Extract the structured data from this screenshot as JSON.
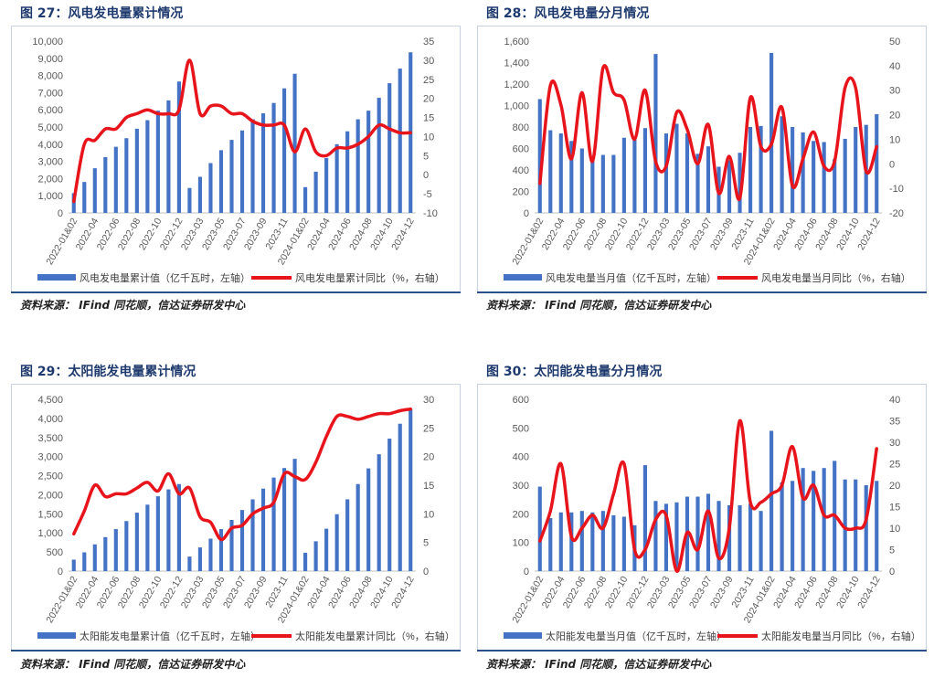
{
  "colors": {
    "bar": "#4472c4",
    "line": "#e8141b",
    "axis": "#595959",
    "title": "#1f3a6e"
  },
  "panels": [
    {
      "title": "图 27：风电发电量累计情况",
      "source": "资料来源： IFind 同花顺，信达证券研发中心",
      "chart_data": {
        "type": "bar+line",
        "categories": [
          "2022-01&02",
          "2022-03",
          "2022-04",
          "2022-05",
          "2022-06",
          "2022-07",
          "2022-08",
          "2022-09",
          "2022-10",
          "2022-11",
          "2022-12",
          "2023-01&02",
          "2023-03",
          "2023-04",
          "2023-05",
          "2023-06",
          "2023-07",
          "2023-08",
          "2023-09",
          "2023-10",
          "2023-11",
          "2023-12",
          "2024-01&02",
          "2024-03",
          "2024-04",
          "2024-05",
          "2024-06",
          "2024-07",
          "2024-08",
          "2024-09",
          "2024-10",
          "2024-11",
          "2024-12"
        ],
        "tick_labels": [
          "2022-01&02",
          "2022-04",
          "2022-06",
          "2022-08",
          "2022-10",
          "2022-12",
          "2023-03",
          "2023-05",
          "2023-07",
          "2023-09",
          "2023-11",
          "2024-01&02",
          "2024-04",
          "2024-06",
          "2024-08",
          "2024-10",
          "2024-12"
        ],
        "left_axis": {
          "min": 0,
          "max": 10000,
          "step": 1000,
          "labels": [
            "0",
            "1,000",
            "2,000",
            "3,000",
            "4,000",
            "5,000",
            "6,000",
            "7,000",
            "8,000",
            "9,000",
            "10,000"
          ]
        },
        "right_axis": {
          "min": -10,
          "max": 35,
          "step": 5,
          "labels": [
            "-10",
            "-5",
            "0",
            "5",
            "10",
            "15",
            "20",
            "25",
            "30",
            "35"
          ]
        },
        "series": [
          {
            "name": "风电发电量累计值（亿千瓦时，左轴）",
            "axis": "left",
            "kind": "bar",
            "values": [
              1150,
              1800,
              2600,
              3250,
              3850,
              4350,
              4900,
              5400,
              5950,
              6550,
              7650,
              1450,
              2100,
              2900,
              3650,
              4250,
              4800,
              5450,
              5800,
              6400,
              7250,
              8100,
              1500,
              2400,
              3200,
              4000,
              4750,
              5450,
              5950,
              6700,
              7550,
              8400,
              9350
            ]
          },
          {
            "name": "风电发电量累计同比（%，右轴）",
            "axis": "right",
            "kind": "line",
            "values": [
              -7,
              8,
              9,
              12,
              12,
              15,
              16,
              17,
              16,
              16,
              17,
              30,
              16,
              18,
              18,
              16,
              16,
              14,
              13,
              13,
              13,
              6,
              12,
              6,
              5,
              7,
              7,
              8,
              10,
              13,
              12,
              11,
              11
            ]
          }
        ]
      }
    },
    {
      "title": "图 28：风电发电量分月情况",
      "source": "资料来源： IFind 同花顺，信达证券研发中心",
      "chart_data": {
        "type": "bar+line",
        "categories": [
          "2022-01&02",
          "2022-03",
          "2022-04",
          "2022-05",
          "2022-06",
          "2022-07",
          "2022-08",
          "2022-09",
          "2022-10",
          "2022-11",
          "2022-12",
          "2023-01&02",
          "2023-03",
          "2023-04",
          "2023-05",
          "2023-06",
          "2023-07",
          "2023-08",
          "2023-09",
          "2023-10",
          "2023-11",
          "2023-12",
          "2024-01&02",
          "2024-03",
          "2024-04",
          "2024-05",
          "2024-06",
          "2024-07",
          "2024-08",
          "2024-09",
          "2024-10",
          "2024-11",
          "2024-12"
        ],
        "tick_labels": [
          "2022-01&02",
          "2022-04",
          "2022-06",
          "2022-08",
          "2022-10",
          "2022-12",
          "2023-03",
          "2023-05",
          "2023-07",
          "2023-09",
          "2023-11",
          "2024-01&02",
          "2024-04",
          "2024-06",
          "2024-08",
          "2024-10",
          "2024-12"
        ],
        "left_axis": {
          "min": 0,
          "max": 1600,
          "step": 200,
          "labels": [
            "0",
            "200",
            "400",
            "600",
            "800",
            "1,000",
            "1,200",
            "1,400",
            "1,600"
          ]
        },
        "right_axis": {
          "min": -20,
          "max": 50,
          "step": 10,
          "labels": [
            "-20",
            "-10",
            "0",
            "10",
            "20",
            "30",
            "40",
            "50"
          ]
        },
        "series": [
          {
            "name": "风电发电量当月值（亿千瓦时，左轴）",
            "axis": "left",
            "kind": "bar",
            "values": [
              1060,
              770,
              740,
              670,
              600,
              520,
              540,
              540,
              700,
              700,
              790,
              1480,
              740,
              830,
              740,
              550,
              620,
              430,
              490,
              560,
              800,
              810,
              1490,
              900,
              800,
              750,
              670,
              660,
              500,
              690,
              800,
              820,
              920
            ]
          },
          {
            "name": "风电发电量当月同比（%，右轴）",
            "axis": "right",
            "kind": "line",
            "values": [
              -8,
              32,
              24,
              2,
              29,
              1,
              39,
              29,
              26,
              10,
              30,
              1,
              -1,
              21,
              14,
              0,
              16,
              -12,
              3,
              -14,
              27,
              7,
              8,
              23,
              -9,
              2,
              13,
              -1,
              1,
              31,
              31,
              -3,
              7
            ]
          }
        ]
      }
    },
    {
      "title": "图 29：太阳能发电量累计情况",
      "source": "资料来源： IFind 同花顺，信达证券研发中心",
      "chart_data": {
        "type": "bar+line",
        "categories": [
          "2022-01&02",
          "2022-03",
          "2022-04",
          "2022-05",
          "2022-06",
          "2022-07",
          "2022-08",
          "2022-09",
          "2022-10",
          "2022-11",
          "2022-12",
          "2023-01&02",
          "2023-03",
          "2023-04",
          "2023-05",
          "2023-06",
          "2023-07",
          "2023-08",
          "2023-09",
          "2023-10",
          "2023-11",
          "2023-12",
          "2024-01&02",
          "2024-03",
          "2024-04",
          "2024-05",
          "2024-06",
          "2024-07",
          "2024-08",
          "2024-09",
          "2024-10",
          "2024-11",
          "2024-12"
        ],
        "tick_labels": [
          "2022-01&02",
          "2022-04",
          "2022-06",
          "2022-08",
          "2022-10",
          "2022-12",
          "2023-03",
          "2023-05",
          "2023-07",
          "2023-09",
          "2023-11",
          "2024-01&02",
          "2024-04",
          "2024-06",
          "2024-08",
          "2024-10",
          "2024-12"
        ],
        "left_axis": {
          "min": 0,
          "max": 4500,
          "step": 500,
          "labels": [
            "0",
            "500",
            "1,000",
            "1,500",
            "2,000",
            "2,500",
            "3,000",
            "3,500",
            "4,000",
            "4,500"
          ]
        },
        "right_axis": {
          "min": 0,
          "max": 30,
          "step": 5,
          "labels": [
            "0",
            "5",
            "10",
            "15",
            "20",
            "25",
            "30"
          ]
        },
        "series": [
          {
            "name": "太阳能发电量累计值（亿千瓦时，左轴）",
            "axis": "left",
            "kind": "bar",
            "values": [
              300,
              490,
              700,
              890,
              1100,
              1310,
              1530,
              1740,
              1960,
              2140,
              2280,
              380,
              620,
              850,
              1100,
              1340,
              1600,
              1880,
              2160,
              2450,
              2700,
              2940,
              480,
              780,
              1110,
              1490,
              1880,
              2280,
              2690,
              3060,
              3470,
              3860,
              4250
            ]
          },
          {
            "name": "太阳能发电量累计同比（%，右轴）",
            "axis": "right",
            "kind": "line",
            "values": [
              6.5,
              10.5,
              15,
              13,
              13.5,
              13.5,
              14.5,
              15.5,
              14,
              17,
              13.5,
              14.5,
              9.5,
              8.5,
              5.5,
              7.5,
              8,
              10,
              11,
              12,
              17,
              16.5,
              16,
              19,
              23.5,
              27,
              27,
              26.5,
              27,
              27.5,
              27.5,
              28,
              28.3
            ]
          }
        ]
      }
    },
    {
      "title": "图 30：太阳能发电量分月情况",
      "source": "资料来源： IFind 同花顺，信达证券研发中心",
      "chart_data": {
        "type": "bar+line",
        "categories": [
          "2022-01&02",
          "2022-03",
          "2022-04",
          "2022-05",
          "2022-06",
          "2022-07",
          "2022-08",
          "2022-09",
          "2022-10",
          "2022-11",
          "2022-12",
          "2023-01&02",
          "2023-03",
          "2023-04",
          "2023-05",
          "2023-06",
          "2023-07",
          "2023-08",
          "2023-09",
          "2023-10",
          "2023-11",
          "2023-12",
          "2024-01&02",
          "2024-03",
          "2024-04",
          "2024-05",
          "2024-06",
          "2024-07",
          "2024-08",
          "2024-09",
          "2024-10",
          "2024-11",
          "2024-12"
        ],
        "tick_labels": [
          "2022-01&02",
          "2022-04",
          "2022-06",
          "2022-08",
          "2022-10",
          "2022-12",
          "2023-03",
          "2023-05",
          "2023-07",
          "2023-09",
          "2023-11",
          "2024-01&02",
          "2024-04",
          "2024-06",
          "2024-08",
          "2024-10",
          "2024-12"
        ],
        "left_axis": {
          "min": 0,
          "max": 600,
          "step": 100,
          "labels": [
            "0",
            "100",
            "200",
            "300",
            "400",
            "500",
            "600"
          ]
        },
        "right_axis": {
          "min": 0,
          "max": 40,
          "step": 5,
          "labels": [
            "0",
            "5",
            "10",
            "15",
            "20",
            "25",
            "30",
            "35",
            "40"
          ]
        },
        "series": [
          {
            "name": "太阳能发电量当月值（亿千瓦时，左轴）",
            "axis": "left",
            "kind": "bar",
            "values": [
              295,
              185,
              205,
              205,
              210,
              205,
              210,
              195,
              190,
              160,
              370,
              245,
              235,
              240,
              260,
              260,
              270,
              245,
              230,
              230,
              235,
              210,
              490,
              310,
              315,
              360,
              350,
              360,
              385,
              320,
              320,
              300,
              315
            ]
          },
          {
            "name": "太阳能发电量当月同比（%，右轴）",
            "axis": "right",
            "kind": "line",
            "values": [
              7,
              14,
              25,
              8,
              10,
              13,
              10,
              18,
              25,
              5,
              5,
              12,
              13,
              0,
              9,
              5,
              14,
              3,
              10,
              35,
              16,
              16,
              18,
              20,
              29,
              17,
              20,
              13,
              13,
              10,
              10,
              12,
              28.5
            ]
          }
        ]
      }
    }
  ]
}
